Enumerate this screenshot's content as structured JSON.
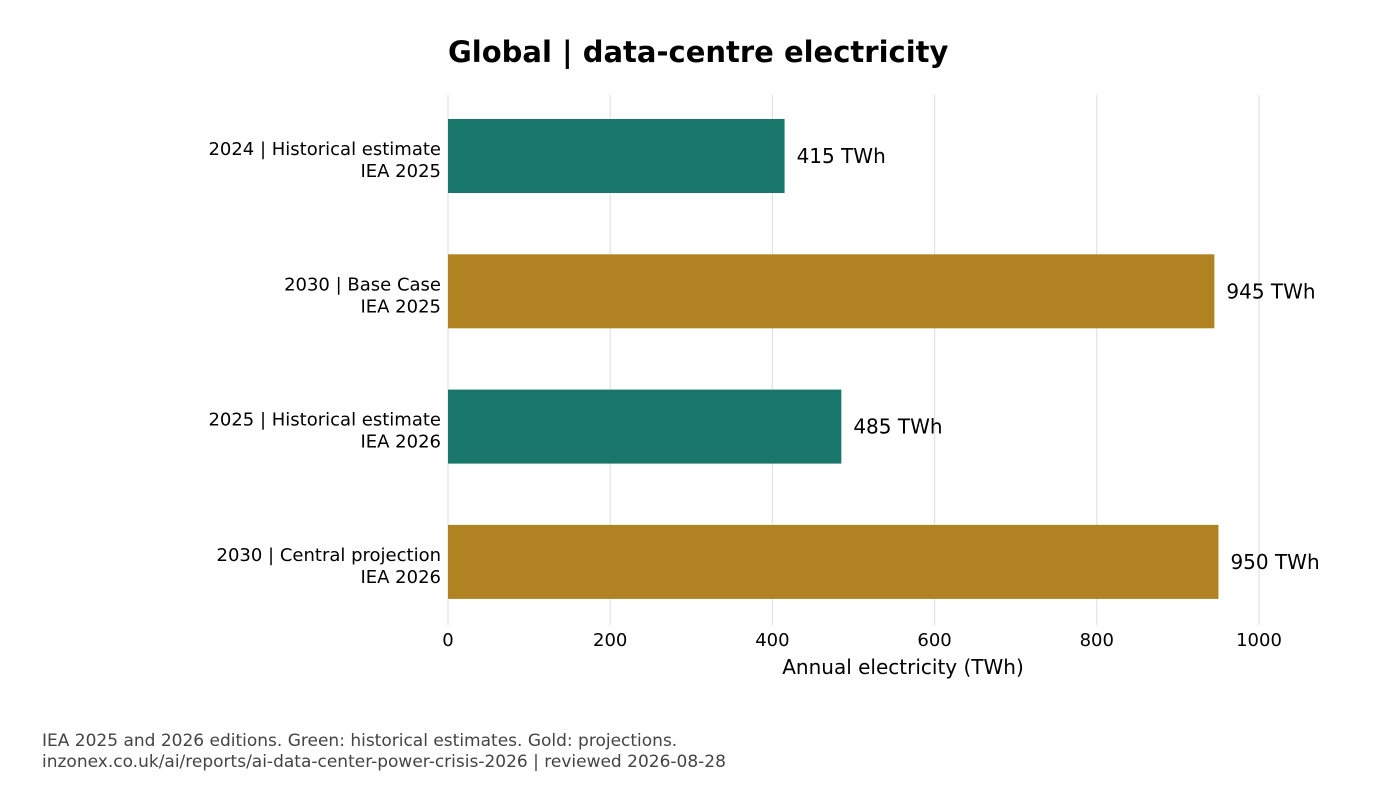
{
  "chart_data": {
    "type": "bar",
    "orientation": "horizontal",
    "title": "Global | data-centre electricity",
    "xlabel": "Annual electricity (TWh)",
    "ylabel": "",
    "xlim": [
      0,
      1000
    ],
    "xticks": [
      "0",
      "200",
      "400",
      "600",
      "800",
      "1000"
    ],
    "grid": "vertical",
    "categories": [
      {
        "line1": "2024 | Historical estimate",
        "line2": "IEA 2025"
      },
      {
        "line1": "2030 | Base Case",
        "line2": "IEA 2025"
      },
      {
        "line1": "2025 | Historical estimate",
        "line2": "IEA 2026"
      },
      {
        "line1": "2030 | Central projection",
        "line2": "IEA 2026"
      }
    ],
    "values": [
      415,
      945,
      485,
      950
    ],
    "value_labels": [
      "415 TWh",
      "945 TWh",
      "485 TWh",
      "950 TWh"
    ],
    "kinds": [
      "historical",
      "projection",
      "historical",
      "projection"
    ],
    "colors": {
      "historical": "#19766b",
      "projection": "#b08222",
      "grid": "#e3e3e3"
    }
  },
  "footnote": {
    "line1": "IEA 2025 and 2026 editions. Green: historical estimates. Gold: projections.",
    "line2": "inzonex.co.uk/ai/reports/ai-data-center-power-crisis-2026 | reviewed 2026-08-28"
  }
}
